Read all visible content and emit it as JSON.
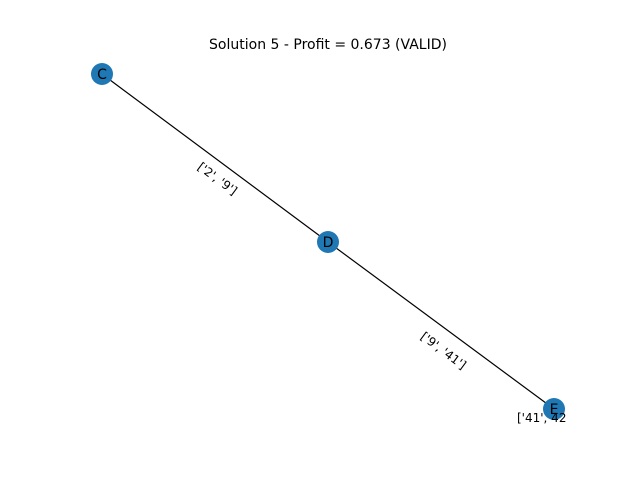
{
  "title": "Solution 5 - Profit = 0.673 (VALID)",
  "colors": {
    "node": "#1f77b4",
    "edge": "#000000"
  },
  "nodes": [
    "C",
    "D",
    "E"
  ],
  "edges": [
    {
      "from": "C",
      "to": "D",
      "label": "['2', '9']"
    },
    {
      "from": "D",
      "to": "E",
      "label": "['9', '41']"
    }
  ],
  "partial_label": "['41', 42"
}
